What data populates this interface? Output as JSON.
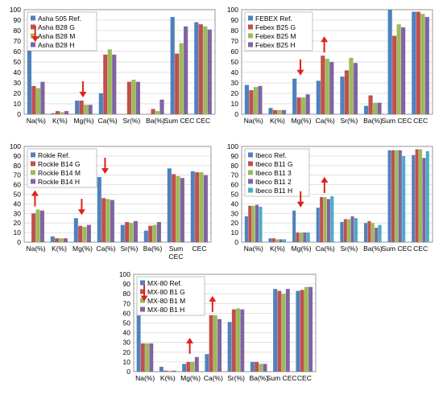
{
  "chart_data": [
    {
      "type": "bar",
      "categories": [
        "Na(%)",
        "K(%)",
        "Mg(%)",
        "Ca(%)",
        "Sr(%)",
        "Ba(%)",
        "Sum CEC",
        "CEC"
      ],
      "ylim": [
        0,
        100
      ],
      "yticks": [
        0,
        10,
        20,
        30,
        40,
        50,
        60,
        70,
        80,
        90,
        100
      ],
      "legend_position": "top-left",
      "series": [
        {
          "name": "Asha 505 Ref.",
          "color": "#4f81bd",
          "values": [
            66,
            1,
            13,
            20,
            0,
            0,
            93,
            88
          ]
        },
        {
          "name": "Asha B28 G",
          "color": "#c0504d",
          "values": [
            27,
            3,
            13,
            57,
            31,
            5,
            58,
            86
          ]
        },
        {
          "name": "Asha B28 M",
          "color": "#9bbb59",
          "values": [
            25,
            2,
            9,
            62,
            33,
            3,
            68,
            84
          ]
        },
        {
          "name": "Asha B28 H",
          "color": "#8064a2",
          "values": [
            31,
            3,
            9,
            57,
            31,
            14,
            84,
            81
          ]
        }
      ],
      "arrows": [
        {
          "category": "Na(%)",
          "direction": "down"
        },
        {
          "category": "Mg(%)",
          "direction": "down"
        }
      ]
    },
    {
      "type": "bar",
      "categories": [
        "Na(%)",
        "K(%)",
        "Mg(%)",
        "Ca(%)",
        "Sr(%)",
        "Ba(%)",
        "Sum CEC",
        "CEC"
      ],
      "ylim": [
        0,
        100
      ],
      "yticks": [
        0,
        10,
        20,
        30,
        40,
        50,
        60,
        70,
        80,
        90,
        100
      ],
      "legend_position": "top-left",
      "series": [
        {
          "name": "FEBEX Ref.",
          "color": "#4f81bd",
          "values": [
            28,
            6,
            34,
            32,
            36,
            8,
            100,
            98
          ]
        },
        {
          "name": "Febex B25 G",
          "color": "#c0504d",
          "values": [
            23,
            4,
            16,
            56,
            42,
            18,
            75,
            98
          ]
        },
        {
          "name": "Febex B25 M",
          "color": "#9bbb59",
          "values": [
            26,
            4,
            16,
            53,
            54,
            11,
            86,
            96
          ]
        },
        {
          "name": "Febex B25 H",
          "color": "#8064a2",
          "values": [
            27,
            4,
            19,
            50,
            49,
            11,
            83,
            93
          ]
        }
      ],
      "arrows": [
        {
          "category": "Mg(%)",
          "direction": "down"
        },
        {
          "category": "Ca(%)",
          "direction": "up"
        }
      ]
    },
    {
      "type": "bar",
      "categories": [
        "Na(%)",
        "K(%)",
        "Mg(%)",
        "Ca(%)",
        "Sr(%)",
        "Ba(%)",
        "Sum CEC",
        "CEC"
      ],
      "ylim": [
        0,
        100
      ],
      "yticks": [
        0,
        10,
        20,
        30,
        40,
        50,
        60,
        70,
        80,
        90,
        100
      ],
      "legend_position": "top-left",
      "series": [
        {
          "name": "Rokle Ref.",
          "color": "#4f81bd",
          "values": [
            0,
            6,
            25,
            68,
            18,
            12,
            77,
            74
          ]
        },
        {
          "name": "Rockle B14 G",
          "color": "#c0504d",
          "values": [
            30,
            4,
            17,
            46,
            21,
            17,
            71,
            73
          ]
        },
        {
          "name": "Rockle B14 M",
          "color": "#9bbb59",
          "values": [
            34,
            4,
            16,
            45,
            20,
            18,
            69,
            73
          ]
        },
        {
          "name": "Rockle B14 H",
          "color": "#8064a2",
          "values": [
            33,
            4,
            18,
            44,
            22,
            21,
            67,
            70
          ]
        }
      ],
      "arrows": [
        {
          "category": "Na(%)",
          "direction": "up"
        },
        {
          "category": "Mg(%)",
          "direction": "down"
        },
        {
          "category": "Ca(%)",
          "direction": "down"
        }
      ]
    },
    {
      "type": "bar",
      "categories": [
        "Na(%)",
        "K(%)",
        "Mg(%)",
        "Ca(%)",
        "Sr(%)",
        "Ba(%)",
        "Sum CEC",
        "CEC"
      ],
      "ylim": [
        0,
        100
      ],
      "yticks": [
        0,
        10,
        20,
        30,
        40,
        50,
        60,
        70,
        80,
        90,
        100
      ],
      "legend_position": "top-left",
      "series": [
        {
          "name": "Ibeco Ref.",
          "color": "#4f81bd",
          "values": [
            27,
            4,
            33,
            36,
            21,
            20,
            96,
            91
          ]
        },
        {
          "name": "Ibeco B11 G",
          "color": "#c0504d",
          "values": [
            38,
            4,
            10,
            47,
            24,
            22,
            96,
            97
          ]
        },
        {
          "name": "Ibeco B11 3",
          "color": "#9bbb59",
          "values": [
            38,
            3,
            10,
            47,
            24,
            20,
            96,
            97
          ]
        },
        {
          "name": "Ibeco B11 2",
          "color": "#8064a2",
          "values": [
            39,
            3,
            10,
            45,
            27,
            15,
            96,
            88
          ]
        },
        {
          "name": "Ibeco B11 H",
          "color": "#4bacc6",
          "values": [
            37,
            3,
            10,
            48,
            25,
            18,
            90,
            95
          ]
        }
      ],
      "arrows": [
        {
          "category": "Mg(%)",
          "direction": "down"
        },
        {
          "category": "Ca(%)",
          "direction": "up"
        }
      ]
    },
    {
      "type": "bar",
      "categories": [
        "Na(%)",
        "K(%)",
        "Mg(%)",
        "Ca(%)",
        "Sr(%)",
        "Ba(%)",
        "Sum CEC",
        "CEC"
      ],
      "ylim": [
        0,
        100
      ],
      "yticks": [
        0,
        10,
        20,
        30,
        40,
        50,
        60,
        70,
        80,
        90,
        100
      ],
      "legend_position": "top-left",
      "series": [
        {
          "name": "MX-80 Ref.",
          "color": "#4f81bd",
          "values": [
            69,
            5,
            8,
            18,
            51,
            10,
            85,
            83
          ]
        },
        {
          "name": "MX-80 B1 G",
          "color": "#c0504d",
          "values": [
            29,
            1,
            10,
            58,
            64,
            10,
            83,
            84
          ]
        },
        {
          "name": "MX-80 B1 M",
          "color": "#9bbb59",
          "values": [
            29,
            1,
            10,
            58,
            65,
            8,
            80,
            87
          ]
        },
        {
          "name": "MX-80 B1 H",
          "color": "#8064a2",
          "values": [
            29,
            1,
            15,
            54,
            64,
            8,
            85,
            87
          ]
        }
      ],
      "arrows": [
        {
          "category": "Na(%)",
          "direction": "down"
        },
        {
          "category": "Mg(%)",
          "direction": "up"
        },
        {
          "category": "Ca(%)",
          "direction": "up"
        }
      ]
    }
  ]
}
